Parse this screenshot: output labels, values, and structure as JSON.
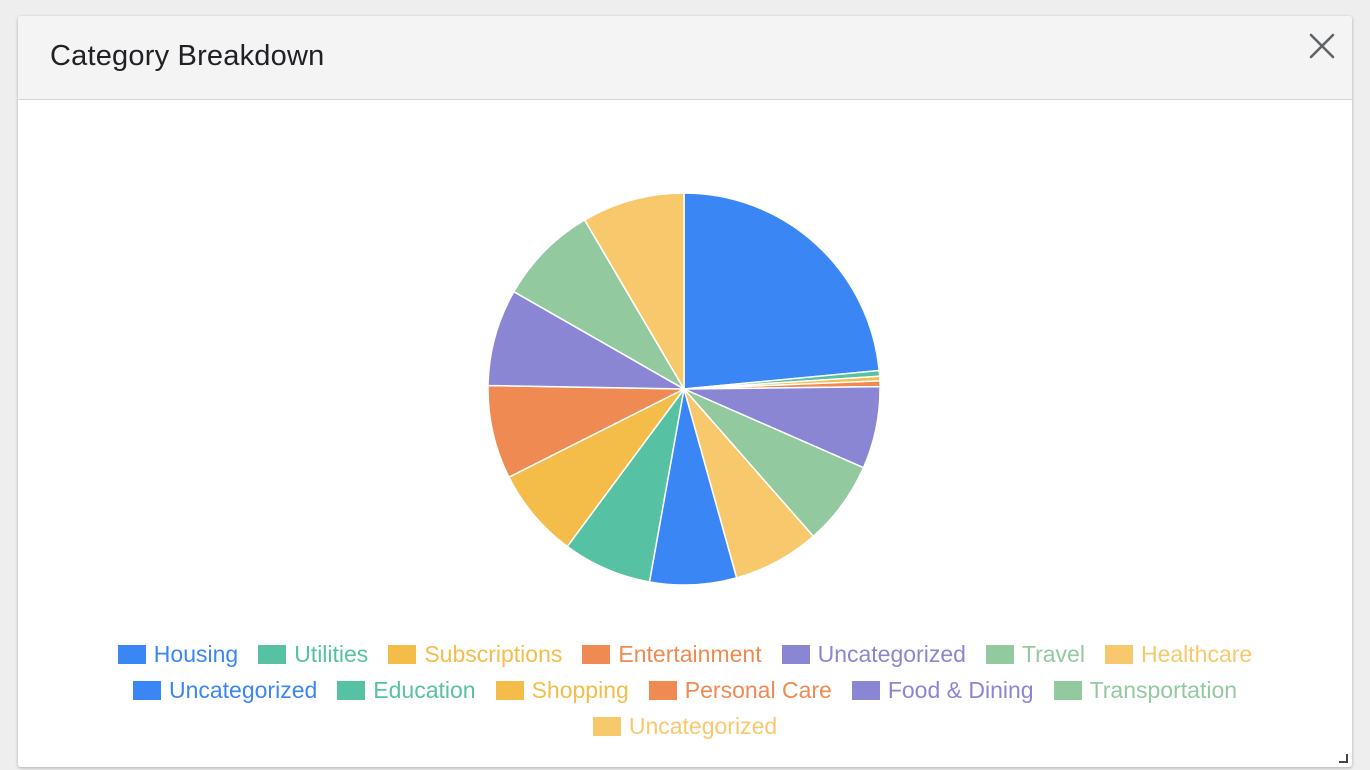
{
  "dialog": {
    "title": "Category Breakdown",
    "close_icon": "close-icon",
    "resize_icon": "resize-handle-icon"
  },
  "chart_data": {
    "type": "pie",
    "title": "",
    "categories": [
      "Housing",
      "Utilities",
      "Subscriptions",
      "Entertainment",
      "Uncategorized",
      "Travel",
      "Healthcare",
      "Uncategorized",
      "Education",
      "Shopping",
      "Personal Care",
      "Food & Dining",
      "Transportation",
      "Uncategorized"
    ],
    "values": [
      25.0,
      0.5,
      0.4,
      0.5,
      7.2,
      7.4,
      7.6,
      7.6,
      7.8,
      7.9,
      8.2,
      8.5,
      8.8,
      9.0
    ],
    "colors": [
      "#3b86f5",
      "#57c2a3",
      "#f4bd4a",
      "#ef8a52",
      "#8b86d4",
      "#93c99f",
      "#f7c96c",
      "#3b86f5",
      "#57c2a3",
      "#f4bd4a",
      "#ef8a52",
      "#8b86d4",
      "#93c99f",
      "#f7c96c"
    ],
    "legend_position": "bottom",
    "start_angle": "12 o'clock, clockwise"
  }
}
